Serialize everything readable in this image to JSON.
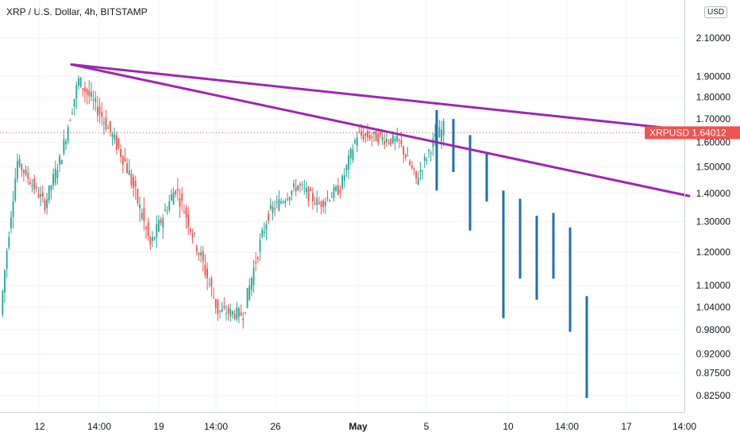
{
  "header": {
    "title": "XRP / U.S. Dollar, 4h, BITSTAMP",
    "currency_button": "USD"
  },
  "price_tag": {
    "symbol": "XRPUSD",
    "value": "1.64012",
    "color": "#ef5350"
  },
  "colors": {
    "up": "#26a69a",
    "down": "#ef5350",
    "trendline": "#9c27b0",
    "projection": "#1e6fb5",
    "grid": "#f0f3fa"
  },
  "chart_data": {
    "type": "candlestick",
    "symbol": "XRPUSD",
    "timeframe": "4h",
    "exchange": "BITSTAMP",
    "y_scale": "log",
    "ylim": [
      0.79,
      2.32
    ],
    "y_ticks": [
      2.1,
      1.9,
      1.8,
      1.7,
      1.6,
      1.5,
      1.4,
      1.3,
      1.2,
      1.1,
      1.04,
      0.98,
      0.92,
      0.875,
      0.825
    ],
    "y_tick_labels": [
      "2.10000",
      "1.90000",
      "1.80000",
      "1.70000",
      "1.60000",
      "1.50000",
      "1.40000",
      "1.30000",
      "1.20000",
      "1.10000",
      "1.04000",
      "0.98000",
      "0.92000",
      "0.87500",
      "0.82500"
    ],
    "x_tick_labels": [
      "12",
      "14:00",
      "19",
      "14:00",
      "26",
      "May",
      "5",
      "10",
      "14:00",
      "17",
      "14:00"
    ],
    "bold_x_labels": [
      "May"
    ],
    "last_price": 1.64012,
    "segments": [
      {
        "bars": 8,
        "from": 1.02,
        "to": 1.52,
        "vol": 0.05
      },
      {
        "bars": 13,
        "from": 1.52,
        "to": 1.36,
        "vol": 0.04
      },
      {
        "bars": 8,
        "from": 1.36,
        "to": 1.55,
        "vol": 0.04
      },
      {
        "bars": 8,
        "from": 1.55,
        "to": 1.88,
        "vol": 0.05
      },
      {
        "bars": 10,
        "from": 1.88,
        "to": 1.73,
        "vol": 0.05
      },
      {
        "bars": 12,
        "from": 1.73,
        "to": 1.52,
        "vol": 0.05
      },
      {
        "bars": 12,
        "from": 1.52,
        "to": 1.22,
        "vol": 0.06
      },
      {
        "bars": 12,
        "from": 1.22,
        "to": 1.42,
        "vol": 0.05
      },
      {
        "bars": 10,
        "from": 1.42,
        "to": 1.22,
        "vol": 0.05
      },
      {
        "bars": 10,
        "from": 1.22,
        "to": 1.03,
        "vol": 0.06
      },
      {
        "bars": 12,
        "from": 1.03,
        "to": 1.02,
        "vol": 0.04
      },
      {
        "bars": 12,
        "from": 1.02,
        "to": 1.33,
        "vol": 0.05
      },
      {
        "bars": 14,
        "from": 1.33,
        "to": 1.43,
        "vol": 0.04
      },
      {
        "bars": 10,
        "from": 1.43,
        "to": 1.36,
        "vol": 0.04
      },
      {
        "bars": 10,
        "from": 1.36,
        "to": 1.42,
        "vol": 0.04
      },
      {
        "bars": 8,
        "from": 1.42,
        "to": 1.63,
        "vol": 0.04
      },
      {
        "bars": 10,
        "from": 1.63,
        "to": 1.62,
        "vol": 0.04
      },
      {
        "bars": 10,
        "from": 1.62,
        "to": 1.6,
        "vol": 0.04
      },
      {
        "bars": 8,
        "from": 1.6,
        "to": 1.45,
        "vol": 0.04
      },
      {
        "bars": 8,
        "from": 1.45,
        "to": 1.6,
        "vol": 0.04
      },
      {
        "bars": 5,
        "from": 1.6,
        "to": 1.66,
        "vol": 0.05
      }
    ],
    "trendlines": [
      {
        "name": "upper",
        "from": {
          "bar": 0.1,
          "price": 1.96
        },
        "to": {
          "bar": 1.0,
          "price": 1.65
        }
      },
      {
        "name": "lower",
        "from": {
          "bar": 0.1,
          "price": 1.96
        },
        "to": {
          "bar": 1.0,
          "price": 1.39
        }
      }
    ],
    "projection_bars": [
      {
        "high": 1.74,
        "low": 1.41
      },
      {
        "high": 1.7,
        "low": 1.48
      },
      {
        "high": 1.63,
        "low": 1.27
      },
      {
        "high": 1.56,
        "low": 1.37
      },
      {
        "high": 1.41,
        "low": 1.01
      },
      {
        "high": 1.38,
        "low": 1.12
      },
      {
        "high": 1.32,
        "low": 1.06
      },
      {
        "high": 1.33,
        "low": 1.12
      },
      {
        "high": 1.28,
        "low": 0.975
      },
      {
        "high": 1.07,
        "low": 0.82
      }
    ]
  }
}
